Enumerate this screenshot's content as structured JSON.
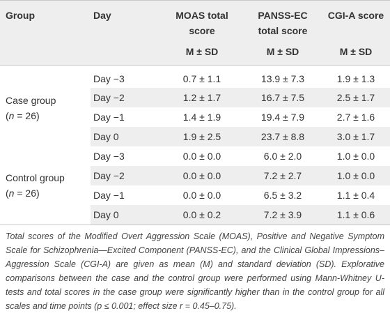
{
  "table": {
    "headers": {
      "group": "Group",
      "day": "Day",
      "moas_l1": "MOAS total",
      "moas_l2": "score",
      "panss_l1": "PANSS-EC",
      "panss_l2": "total score",
      "cgia": "CGI-A score",
      "stat": "M ± SD"
    },
    "groups": [
      {
        "name": "Case group",
        "n_open": "(",
        "n_sym": "n",
        "n_rest": " = 26)",
        "rows": [
          {
            "day": "Day −3",
            "moas": "0.7 ± 1.1",
            "panss": "13.9 ± 7.3",
            "cgia": "1.9 ± 1.3"
          },
          {
            "day": "Day −2",
            "moas": "1.2 ± 1.7",
            "panss": "16.7 ± 7.5",
            "cgia": "2.5 ± 1.7"
          },
          {
            "day": "Day −1",
            "moas": "1.4 ± 1.9",
            "panss": "19.4 ± 7.9",
            "cgia": "2.7 ± 1.6"
          },
          {
            "day": "Day 0",
            "moas": "1.9 ± 2.5",
            "panss": "23.7 ± 8.8",
            "cgia": "3.0 ± 1.7"
          }
        ]
      },
      {
        "name": "Control group",
        "n_open": "(",
        "n_sym": "n",
        "n_rest": " = 26)",
        "rows": [
          {
            "day": "Day −3",
            "moas": "0.0 ± 0.0",
            "panss": "6.0 ± 2.0",
            "cgia": "1.0 ± 0.0"
          },
          {
            "day": "Day −2",
            "moas": "0.0 ± 0.0",
            "panss": "7.2 ± 2.7",
            "cgia": "1.0 ± 0.0"
          },
          {
            "day": "Day −1",
            "moas": "0.0 ± 0.0",
            "panss": "6.5 ± 3.2",
            "cgia": "1.1 ± 0.4"
          },
          {
            "day": "Day 0",
            "moas": "0.0 ± 0.2",
            "panss": "7.2 ± 3.9",
            "cgia": "1.1 ± 0.6"
          }
        ]
      }
    ]
  },
  "footnote": "Total scores of the Modified Overt Aggression Scale (MOAS), Positive and Negative Symptom Scale for Schizophrenia—Excited Component (PANSS-EC), and the Clinical Global Impressions–Aggression Scale (CGI-A) are given as mean (M) and standard deviation (SD). Explorative comparisons between the case and the control group were performed using Mann-Whitney U-tests and total scores in the case group were significantly higher than in the control group for all scales and time points (p ≤ 0.001; effect size r = 0.45–0.75)."
}
